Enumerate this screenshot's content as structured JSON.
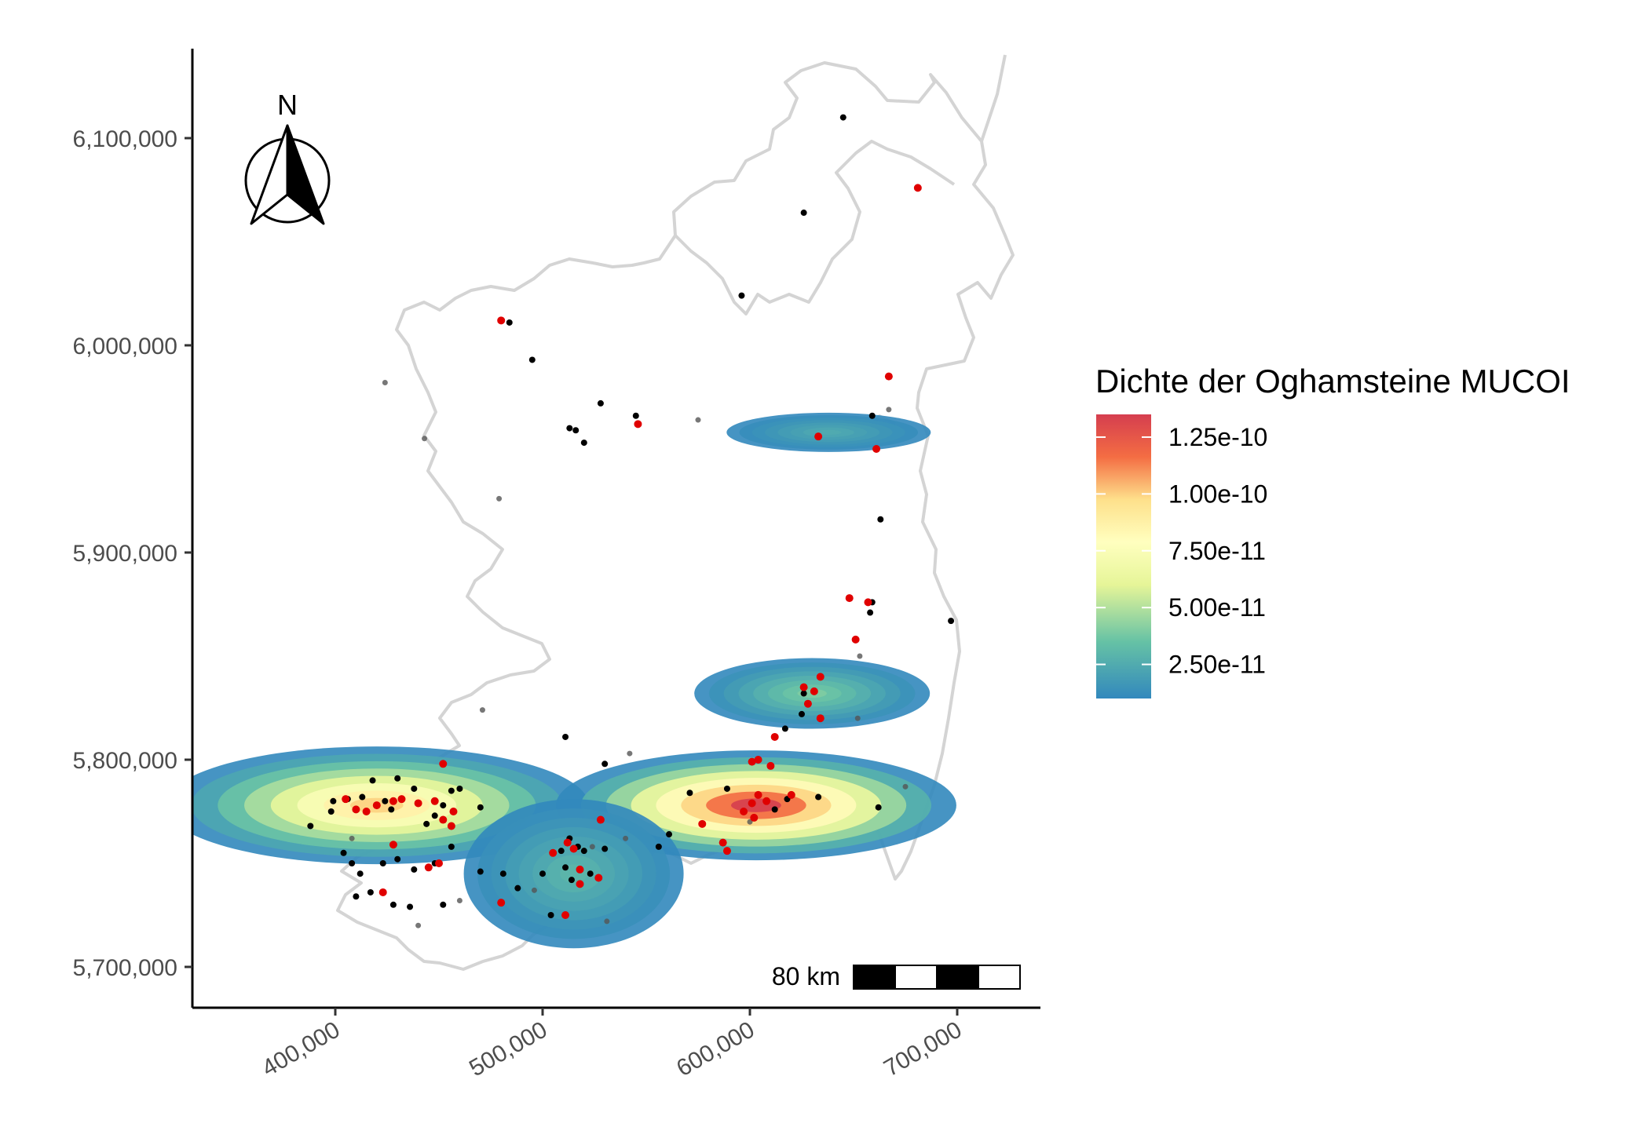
{
  "chart_data": {
    "type": "map-density",
    "title": "",
    "axes": {
      "x": {
        "range": [
          330000,
          730000
        ],
        "ticks": [
          400000,
          500000,
          600000,
          700000
        ],
        "tick_labels": [
          "400,000",
          "500,000",
          "600,000",
          "700,000"
        ]
      },
      "y": {
        "range": [
          5680000,
          6140000
        ],
        "ticks": [
          5700000,
          5800000,
          5900000,
          6000000,
          6100000
        ],
        "tick_labels": [
          "5,700,000",
          "5,800,000",
          "5,900,000",
          "6,000,000",
          "6,100,000"
        ]
      }
    },
    "legend": {
      "title": "Dichte der Oghamsteine MUCOI",
      "entries": [
        "1.25e-10",
        "1.00e-10",
        "7.50e-11",
        "5.00e-11",
        "2.50e-11"
      ],
      "values": [
        1.25e-10,
        1e-10,
        7.5e-11,
        5e-11,
        2.5e-11
      ],
      "range": [
        1e-11,
        1.35e-10
      ]
    },
    "scale_bar": {
      "label": "80 km"
    },
    "north_arrow": {
      "label": "N"
    },
    "density_hotspots": [
      {
        "x": 420000,
        "y": 5778000,
        "peak": 1e-10
      },
      {
        "x": 603000,
        "y": 5778000,
        "peak": 1.35e-10
      },
      {
        "x": 515000,
        "y": 5745000,
        "peak": 3e-11
      },
      {
        "x": 630000,
        "y": 5832000,
        "peak": 4e-11
      },
      {
        "x": 638000,
        "y": 5958000,
        "peak": 2.5e-11
      }
    ],
    "points_red": [
      [
        480000,
        6012000
      ],
      [
        546000,
        5962000
      ],
      [
        681000,
        6076000
      ],
      [
        667000,
        5985000
      ],
      [
        633000,
        5956000
      ],
      [
        661000,
        5950000
      ],
      [
        648000,
        5878000
      ],
      [
        657000,
        5876000
      ],
      [
        651000,
        5858000
      ],
      [
        634000,
        5840000
      ],
      [
        626000,
        5835000
      ],
      [
        631000,
        5833000
      ],
      [
        628000,
        5827000
      ],
      [
        634000,
        5820000
      ],
      [
        612000,
        5811000
      ],
      [
        601000,
        5799000
      ],
      [
        604000,
        5800000
      ],
      [
        610000,
        5797000
      ],
      [
        604000,
        5783000
      ],
      [
        601000,
        5779000
      ],
      [
        597000,
        5775000
      ],
      [
        602000,
        5772000
      ],
      [
        608000,
        5780000
      ],
      [
        620000,
        5783000
      ],
      [
        577000,
        5769000
      ],
      [
        587000,
        5760000
      ],
      [
        589000,
        5756000
      ],
      [
        405000,
        5781000
      ],
      [
        410000,
        5776000
      ],
      [
        415000,
        5775000
      ],
      [
        420000,
        5778000
      ],
      [
        428000,
        5780000
      ],
      [
        432000,
        5781000
      ],
      [
        440000,
        5779000
      ],
      [
        448000,
        5780000
      ],
      [
        452000,
        5771000
      ],
      [
        456000,
        5768000
      ],
      [
        457000,
        5775000
      ],
      [
        428000,
        5759000
      ],
      [
        445000,
        5748000
      ],
      [
        450000,
        5750000
      ],
      [
        423000,
        5736000
      ],
      [
        452000,
        5798000
      ],
      [
        480000,
        5731000
      ],
      [
        505000,
        5755000
      ],
      [
        512000,
        5760000
      ],
      [
        515000,
        5757000
      ],
      [
        518000,
        5747000
      ],
      [
        518000,
        5740000
      ],
      [
        527000,
        5743000
      ],
      [
        511000,
        5725000
      ],
      [
        528000,
        5771000
      ]
    ],
    "points_black": [
      [
        484000,
        6011000
      ],
      [
        495000,
        5993000
      ],
      [
        545000,
        5966000
      ],
      [
        528000,
        5972000
      ],
      [
        513000,
        5960000
      ],
      [
        516000,
        5959000
      ],
      [
        520000,
        5953000
      ],
      [
        645000,
        6110000
      ],
      [
        626000,
        6064000
      ],
      [
        596000,
        6024000
      ],
      [
        663000,
        5916000
      ],
      [
        659000,
        5966000
      ],
      [
        697000,
        5867000
      ],
      [
        659000,
        5876000
      ],
      [
        658000,
        5871000
      ],
      [
        626000,
        5832000
      ],
      [
        625000,
        5822000
      ],
      [
        617000,
        5815000
      ],
      [
        589000,
        5786000
      ],
      [
        571000,
        5784000
      ],
      [
        612000,
        5776000
      ],
      [
        618000,
        5781000
      ],
      [
        633000,
        5782000
      ],
      [
        561000,
        5764000
      ],
      [
        556000,
        5758000
      ],
      [
        388000,
        5768000
      ],
      [
        398000,
        5775000
      ],
      [
        406000,
        5781000
      ],
      [
        413000,
        5782000
      ],
      [
        418000,
        5790000
      ],
      [
        424000,
        5780000
      ],
      [
        427000,
        5776000
      ],
      [
        430000,
        5791000
      ],
      [
        438000,
        5786000
      ],
      [
        444000,
        5769000
      ],
      [
        448000,
        5773000
      ],
      [
        452000,
        5778000
      ],
      [
        456000,
        5785000
      ],
      [
        460000,
        5786000
      ],
      [
        470000,
        5777000
      ],
      [
        404000,
        5755000
      ],
      [
        408000,
        5750000
      ],
      [
        412000,
        5745000
      ],
      [
        423000,
        5750000
      ],
      [
        430000,
        5752000
      ],
      [
        438000,
        5747000
      ],
      [
        448000,
        5750000
      ],
      [
        456000,
        5758000
      ],
      [
        470000,
        5746000
      ],
      [
        481000,
        5745000
      ],
      [
        488000,
        5738000
      ],
      [
        500000,
        5745000
      ],
      [
        509000,
        5756000
      ],
      [
        513000,
        5762000
      ],
      [
        517000,
        5758000
      ],
      [
        520000,
        5756000
      ],
      [
        511000,
        5748000
      ],
      [
        514000,
        5742000
      ],
      [
        523000,
        5745000
      ],
      [
        504000,
        5725000
      ],
      [
        428000,
        5730000
      ],
      [
        417000,
        5736000
      ],
      [
        410000,
        5734000
      ],
      [
        452000,
        5730000
      ],
      [
        436000,
        5729000
      ],
      [
        399000,
        5780000
      ],
      [
        530000,
        5798000
      ],
      [
        511000,
        5811000
      ],
      [
        530000,
        5757000
      ],
      [
        662000,
        5777000
      ]
    ],
    "points_grey": [
      [
        479000,
        5926000
      ],
      [
        542000,
        5803000
      ],
      [
        652000,
        5820000
      ],
      [
        653000,
        5850000
      ],
      [
        667000,
        5969000
      ],
      [
        575000,
        5964000
      ],
      [
        424000,
        5982000
      ],
      [
        443000,
        5955000
      ],
      [
        471000,
        5824000
      ],
      [
        524000,
        5758000
      ],
      [
        540000,
        5762000
      ],
      [
        600000,
        5770000
      ],
      [
        675000,
        5787000
      ],
      [
        440000,
        5720000
      ],
      [
        460000,
        5732000
      ],
      [
        496000,
        5737000
      ],
      [
        408000,
        5762000
      ],
      [
        531000,
        5722000
      ]
    ]
  }
}
